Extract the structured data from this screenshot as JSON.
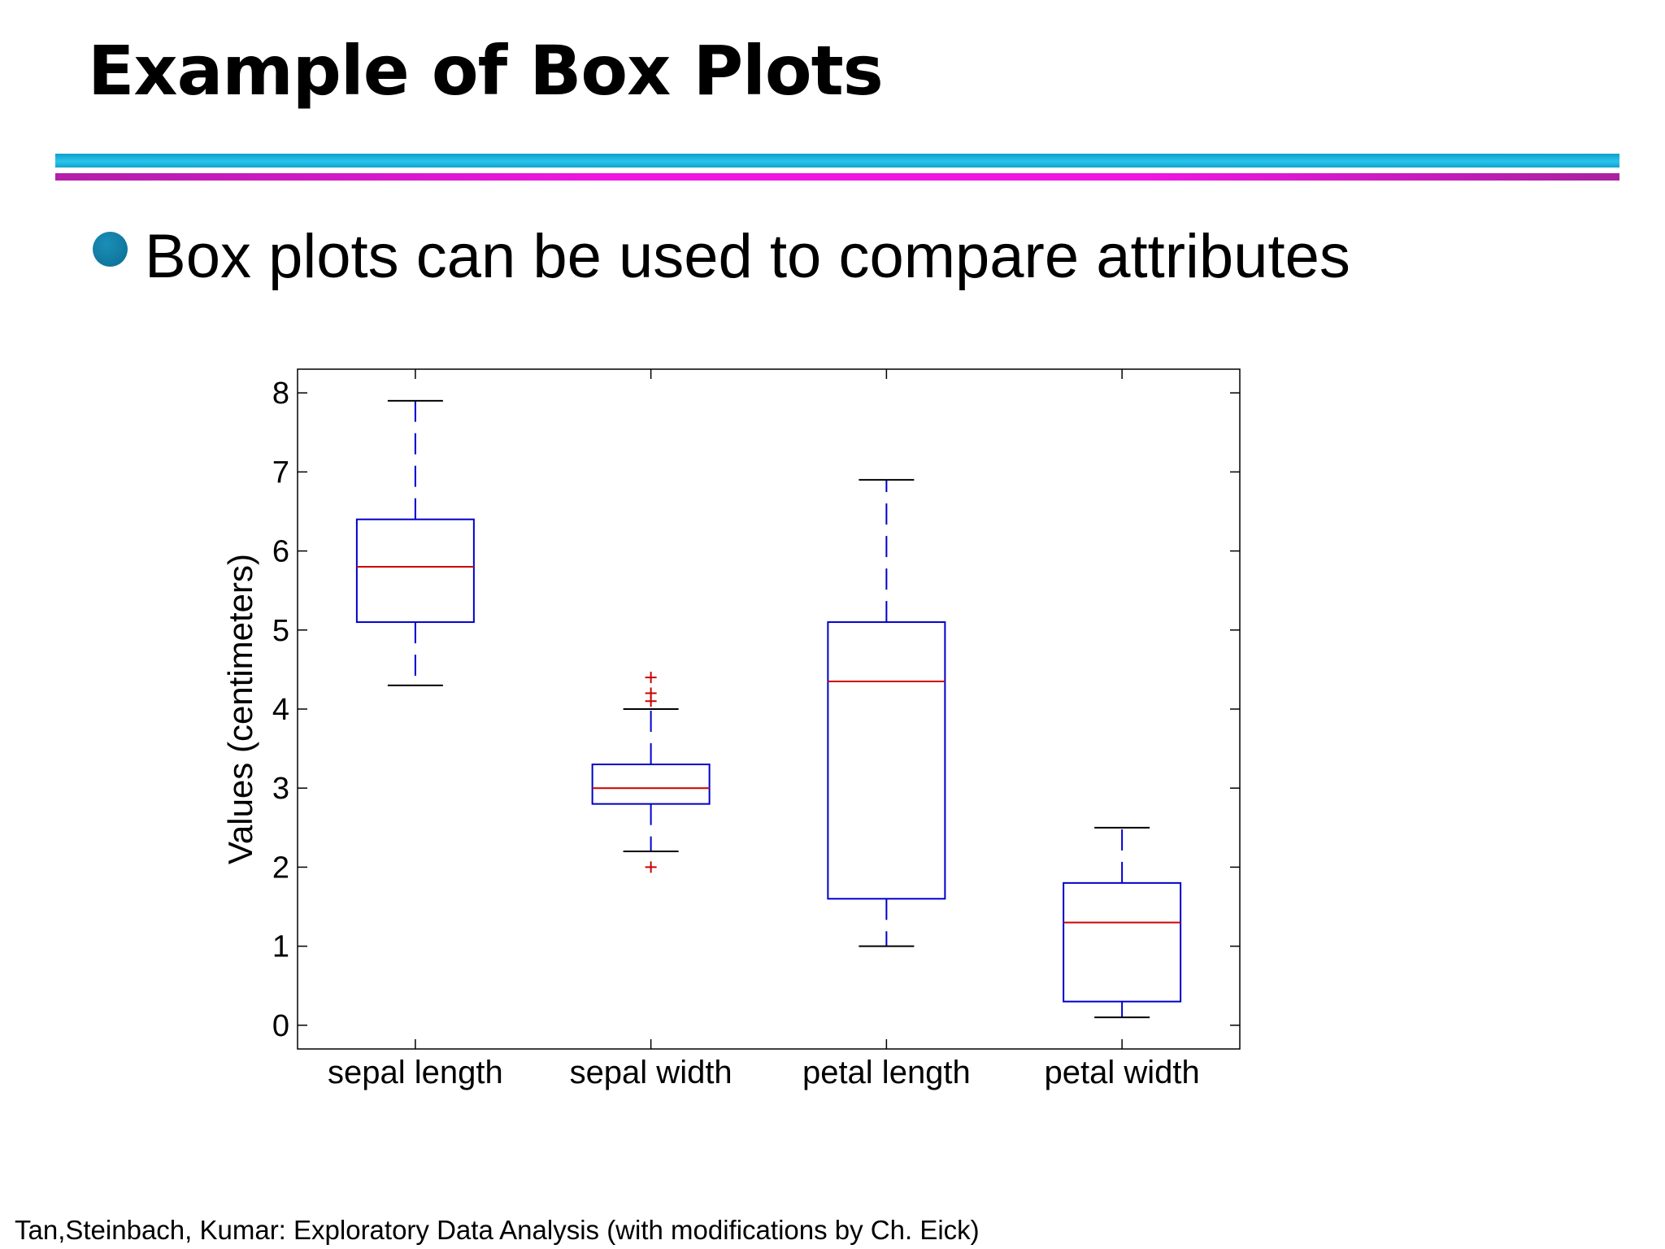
{
  "slide": {
    "title": "Example of Box Plots",
    "bullet": "Box plots can be used to compare attributes",
    "footer": "Tan,Steinbach, Kumar: Exploratory Data Analysis (with modifications by Ch. Eick)"
  },
  "colors": {
    "box": "#0000cc",
    "median": "#cc0000",
    "outlier": "#cc0000",
    "whisker_cap": "#000000",
    "rule_top": "#1ab4de",
    "rule_bottom": "#e81ad9",
    "bullet": "#137fa8"
  },
  "chart_data": {
    "type": "box",
    "title": "",
    "xlabel": "",
    "ylabel": "Values (centimeters)",
    "ylim": [
      -0.3,
      8.3
    ],
    "yticks": [
      0,
      1,
      2,
      3,
      4,
      5,
      6,
      7,
      8
    ],
    "grid": false,
    "categories": [
      "sepal length",
      "sepal width",
      "petal length",
      "petal width"
    ],
    "boxes": [
      {
        "category": "sepal length",
        "whisker_low": 4.3,
        "q1": 5.1,
        "median": 5.8,
        "q3": 6.4,
        "whisker_high": 7.9,
        "outliers": []
      },
      {
        "category": "sepal width",
        "whisker_low": 2.2,
        "q1": 2.8,
        "median": 3.0,
        "q3": 3.3,
        "whisker_high": 4.0,
        "outliers": [
          2.0,
          4.1,
          4.2,
          4.4
        ]
      },
      {
        "category": "petal length",
        "whisker_low": 1.0,
        "q1": 1.6,
        "median": 4.35,
        "q3": 5.1,
        "whisker_high": 6.9,
        "outliers": []
      },
      {
        "category": "petal width",
        "whisker_low": 0.1,
        "q1": 0.3,
        "median": 1.3,
        "q3": 1.8,
        "whisker_high": 2.5,
        "outliers": []
      }
    ]
  }
}
